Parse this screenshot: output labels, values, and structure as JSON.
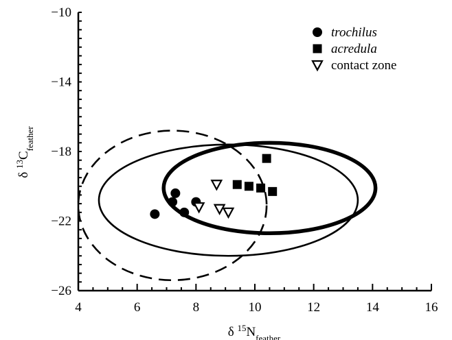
{
  "chart_data": {
    "type": "scatter",
    "xlabel": {
      "base": "δ ",
      "sup": "15",
      "main": "N",
      "sub": "feather"
    },
    "ylabel": {
      "base": "δ ",
      "sup": "13",
      "main": "C",
      "sub": "feather"
    },
    "xlim": [
      4,
      16
    ],
    "ylim": [
      -26,
      -10
    ],
    "xticks": [
      4,
      6,
      8,
      10,
      12,
      14,
      16
    ],
    "yticks": [
      -26,
      -22,
      -18,
      -14,
      -10
    ],
    "grid": false,
    "legend_position": "top-right",
    "series": [
      {
        "name": "trochilus",
        "italic": true,
        "marker": "circle",
        "points": [
          [
            6.6,
            -21.6
          ],
          [
            7.2,
            -20.9
          ],
          [
            7.3,
            -20.4
          ],
          [
            7.6,
            -21.5
          ],
          [
            8.0,
            -20.9
          ]
        ]
      },
      {
        "name": "acredula",
        "italic": true,
        "marker": "square",
        "points": [
          [
            9.4,
            -19.9
          ],
          [
            9.8,
            -20.0
          ],
          [
            10.2,
            -20.1
          ],
          [
            10.4,
            -18.4
          ],
          [
            10.6,
            -20.3
          ]
        ]
      },
      {
        "name": "contact zone",
        "italic": false,
        "marker": "triangle-down",
        "points": [
          [
            8.1,
            -21.2
          ],
          [
            8.7,
            -19.9
          ],
          [
            8.8,
            -21.3
          ],
          [
            9.1,
            -21.5
          ]
        ]
      }
    ],
    "ellipses": [
      {
        "style": "dashed",
        "cx": 7.2,
        "cy": -21.1,
        "rx": 3.2,
        "ry": 4.3
      },
      {
        "style": "thin",
        "cx": 9.1,
        "cy": -20.8,
        "rx": 4.4,
        "ry": 3.2
      },
      {
        "style": "thick",
        "cx": 10.5,
        "cy": -20.1,
        "rx": 3.6,
        "ry": 2.6
      }
    ]
  }
}
